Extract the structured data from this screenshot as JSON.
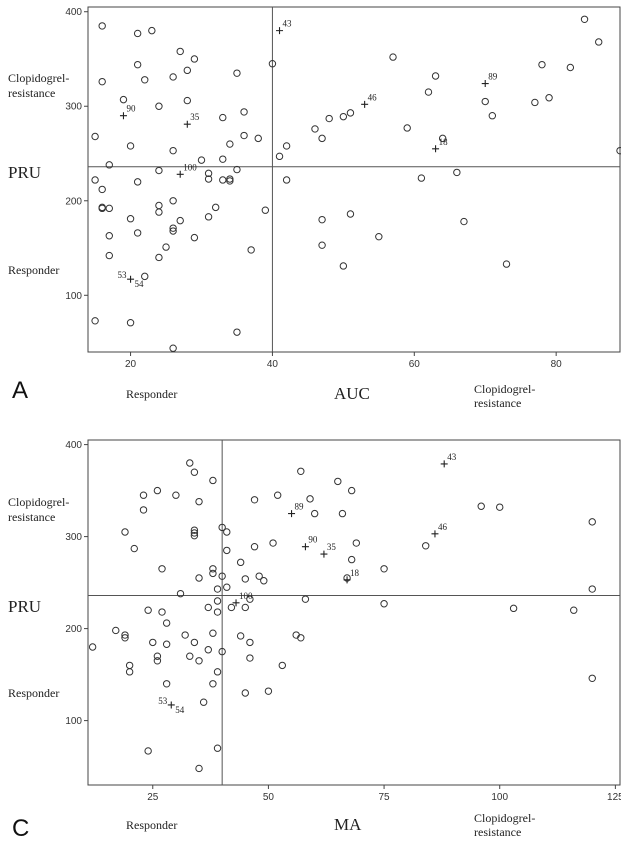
{
  "chart_data": [
    {
      "type": "scatter",
      "panel_label": "A",
      "xlabel": "AUC",
      "ylabel": "PRU",
      "x_ticks": [
        "20",
        "40",
        "60",
        "80"
      ],
      "y_ticks": [
        "100",
        "200",
        "300",
        "400"
      ],
      "xlim": [
        14,
        89
      ],
      "ylim": [
        40,
        405
      ],
      "grid": false,
      "cutoff_x": 40,
      "cutoff_y": 236,
      "y_region_labels": {
        "upper": "Clopidogrel-\nresistance",
        "lower": "Responder"
      },
      "x_region_labels": {
        "left": "Responder",
        "right": "Clopidogrel-\nresistance"
      },
      "points": [
        [
          15,
          268
        ],
        [
          15,
          222
        ],
        [
          15,
          73
        ],
        [
          16,
          385
        ],
        [
          16,
          326
        ],
        [
          16,
          212
        ],
        [
          16,
          193
        ],
        [
          16,
          192
        ],
        [
          17,
          238
        ],
        [
          17,
          192
        ],
        [
          17,
          163
        ],
        [
          17,
          142
        ],
        [
          19,
          307
        ],
        [
          20,
          258
        ],
        [
          20,
          181
        ],
        [
          20,
          71
        ],
        [
          21,
          377
        ],
        [
          21,
          344
        ],
        [
          21,
          220
        ],
        [
          21,
          166
        ],
        [
          22,
          328
        ],
        [
          22,
          120
        ],
        [
          23,
          380
        ],
        [
          24,
          300
        ],
        [
          24,
          232
        ],
        [
          24,
          195
        ],
        [
          24,
          188
        ],
        [
          24,
          140
        ],
        [
          25,
          151
        ],
        [
          26,
          331
        ],
        [
          26,
          253
        ],
        [
          26,
          200
        ],
        [
          26,
          171
        ],
        [
          26,
          168
        ],
        [
          26,
          44
        ],
        [
          27,
          358
        ],
        [
          27,
          179
        ],
        [
          28,
          338
        ],
        [
          28,
          306
        ],
        [
          29,
          350
        ],
        [
          29,
          161
        ],
        [
          30,
          243
        ],
        [
          31,
          229
        ],
        [
          31,
          223
        ],
        [
          31,
          183
        ],
        [
          32,
          193
        ],
        [
          33,
          288
        ],
        [
          33,
          244
        ],
        [
          33,
          222
        ],
        [
          34,
          260
        ],
        [
          34,
          223
        ],
        [
          34,
          221
        ],
        [
          35,
          335
        ],
        [
          35,
          233
        ],
        [
          35,
          61
        ],
        [
          36,
          294
        ],
        [
          36,
          269
        ],
        [
          37,
          148
        ],
        [
          38,
          266
        ],
        [
          39,
          190
        ],
        [
          40,
          345
        ],
        [
          41,
          247
        ],
        [
          42,
          258
        ],
        [
          42,
          222
        ],
        [
          46,
          276
        ],
        [
          47,
          266
        ],
        [
          47,
          180
        ],
        [
          47,
          153
        ],
        [
          48,
          287
        ],
        [
          50,
          131
        ],
        [
          50,
          289
        ],
        [
          51,
          293
        ],
        [
          51,
          186
        ],
        [
          55,
          162
        ],
        [
          57,
          352
        ],
        [
          59,
          277
        ],
        [
          61,
          224
        ],
        [
          62,
          315
        ],
        [
          63,
          332
        ],
        [
          64,
          266
        ],
        [
          66,
          230
        ],
        [
          67,
          178
        ],
        [
          70,
          305
        ],
        [
          71,
          290
        ],
        [
          73,
          133
        ],
        [
          77,
          304
        ],
        [
          78,
          344
        ],
        [
          79,
          309
        ],
        [
          82,
          341
        ],
        [
          84,
          392
        ],
        [
          86,
          368
        ],
        [
          89,
          253
        ]
      ],
      "labeled_points": [
        {
          "label": "43",
          "x": 41,
          "y": 380
        },
        {
          "label": "90",
          "x": 19,
          "y": 290
        },
        {
          "label": "35",
          "x": 28,
          "y": 281
        },
        {
          "label": "46",
          "x": 53,
          "y": 302
        },
        {
          "label": "89",
          "x": 70,
          "y": 324
        },
        {
          "label": "18",
          "x": 63,
          "y": 255
        },
        {
          "label": "100",
          "x": 27,
          "y": 228
        },
        {
          "label": "53",
          "x": 20,
          "y": 117
        },
        {
          "label": "54",
          "x": 20,
          "y": 117
        }
      ]
    },
    {
      "type": "scatter",
      "panel_label": "C",
      "xlabel": "MA",
      "ylabel": "PRU",
      "x_ticks": [
        "25",
        "50",
        "75",
        "100",
        "125"
      ],
      "y_ticks": [
        "100",
        "200",
        "300",
        "400"
      ],
      "xlim": [
        11,
        126
      ],
      "ylim": [
        30,
        405
      ],
      "grid": false,
      "cutoff_x": 40,
      "cutoff_y": 236,
      "y_region_labels": {
        "upper": "Clopidogrel-\nresistance",
        "lower": "Responder"
      },
      "x_region_labels": {
        "left": "Responder",
        "right": "Clopidogrel-\nresistance"
      },
      "points": [
        [
          12,
          180
        ],
        [
          17,
          198
        ],
        [
          19,
          305
        ],
        [
          19,
          193
        ],
        [
          19,
          190
        ],
        [
          20,
          160
        ],
        [
          20,
          153
        ],
        [
          21,
          287
        ],
        [
          23,
          329
        ],
        [
          23,
          345
        ],
        [
          24,
          220
        ],
        [
          24,
          67
        ],
        [
          25,
          185
        ],
        [
          26,
          170
        ],
        [
          26,
          165
        ],
        [
          26,
          350
        ],
        [
          27,
          265
        ],
        [
          27,
          218
        ],
        [
          28,
          206
        ],
        [
          28,
          183
        ],
        [
          28,
          140
        ],
        [
          30,
          345
        ],
        [
          31,
          238
        ],
        [
          32,
          193
        ],
        [
          33,
          380
        ],
        [
          33,
          170
        ],
        [
          34,
          370
        ],
        [
          34,
          307
        ],
        [
          34,
          304
        ],
        [
          34,
          301
        ],
        [
          34,
          185
        ],
        [
          35,
          338
        ],
        [
          35,
          255
        ],
        [
          35,
          165
        ],
        [
          36,
          120
        ],
        [
          37,
          223
        ],
        [
          37,
          177
        ],
        [
          38,
          361
        ],
        [
          38,
          265
        ],
        [
          38,
          260
        ],
        [
          38,
          195
        ],
        [
          38,
          140
        ],
        [
          39,
          243
        ],
        [
          39,
          230
        ],
        [
          39,
          218
        ],
        [
          39,
          153
        ],
        [
          39,
          70
        ],
        [
          40,
          310
        ],
        [
          40,
          257
        ],
        [
          40,
          175
        ],
        [
          41,
          305
        ],
        [
          41,
          285
        ],
        [
          41,
          245
        ],
        [
          42,
          223
        ],
        [
          44,
          272
        ],
        [
          44,
          192
        ],
        [
          45,
          254
        ],
        [
          45,
          223
        ],
        [
          45,
          130
        ],
        [
          46,
          232
        ],
        [
          46,
          185
        ],
        [
          46,
          168
        ],
        [
          47,
          340
        ],
        [
          47,
          289
        ],
        [
          48,
          257
        ],
        [
          49,
          252
        ],
        [
          50,
          132
        ],
        [
          51,
          293
        ],
        [
          52,
          345
        ],
        [
          53,
          160
        ],
        [
          56,
          193
        ],
        [
          57,
          190
        ],
        [
          57,
          371
        ],
        [
          58,
          232
        ],
        [
          59,
          341
        ],
        [
          60,
          325
        ],
        [
          65,
          360
        ],
        [
          66,
          325
        ],
        [
          67,
          255
        ],
        [
          68,
          350
        ],
        [
          68,
          275
        ],
        [
          69,
          293
        ],
        [
          75,
          265
        ],
        [
          75,
          227
        ],
        [
          84,
          290
        ],
        [
          96,
          333
        ],
        [
          100,
          332
        ],
        [
          103,
          222
        ],
        [
          116,
          220
        ],
        [
          120,
          316
        ],
        [
          120,
          243
        ],
        [
          120,
          146
        ],
        [
          35,
          48
        ]
      ],
      "labeled_points": [
        {
          "label": "43",
          "x": 88,
          "y": 379
        },
        {
          "label": "89",
          "x": 55,
          "y": 325
        },
        {
          "label": "90",
          "x": 58,
          "y": 289
        },
        {
          "label": "35",
          "x": 62,
          "y": 281
        },
        {
          "label": "46",
          "x": 86,
          "y": 303
        },
        {
          "label": "18",
          "x": 67,
          "y": 253
        },
        {
          "label": "100",
          "x": 43,
          "y": 228
        },
        {
          "label": "53",
          "x": 29,
          "y": 117
        },
        {
          "label": "54",
          "x": 29,
          "y": 117
        }
      ]
    }
  ]
}
